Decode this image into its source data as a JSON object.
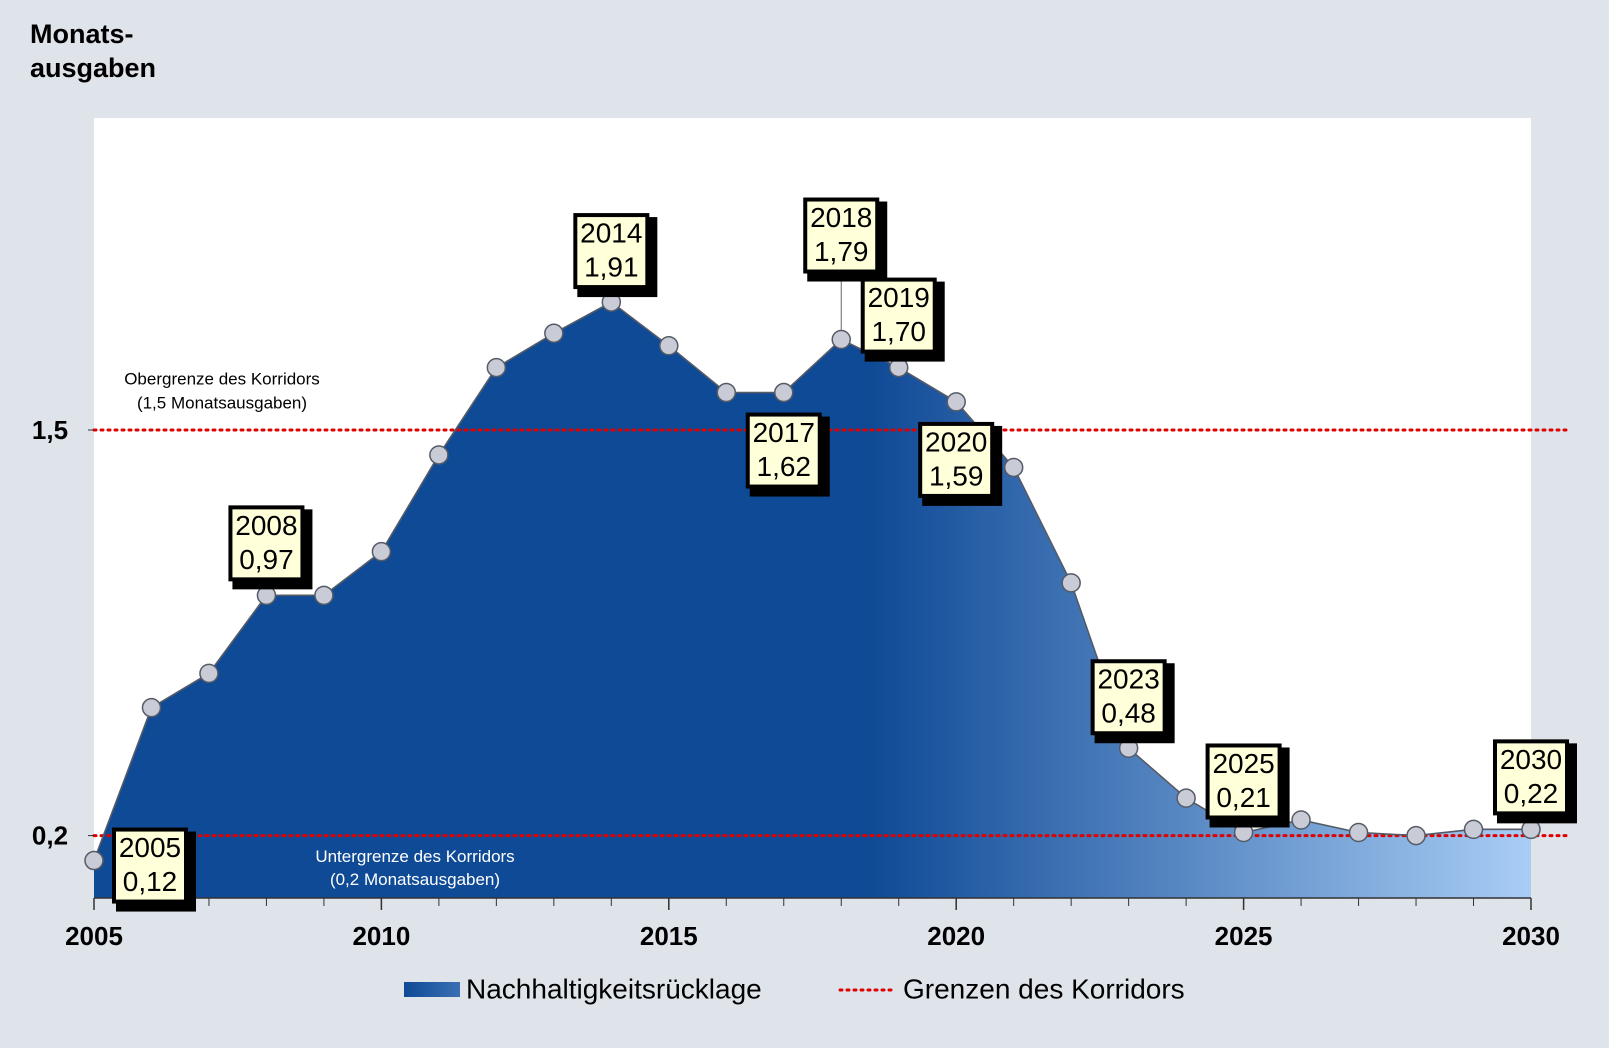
{
  "chart_data": {
    "type": "area",
    "y_label": [
      "Monats-",
      "ausgaben"
    ],
    "x": [
      2005,
      2006,
      2007,
      2008,
      2009,
      2010,
      2011,
      2012,
      2013,
      2014,
      2015,
      2016,
      2017,
      2018,
      2019,
      2020,
      2021,
      2022,
      2023,
      2024,
      2025,
      2026,
      2027,
      2028,
      2029,
      2030
    ],
    "series": [
      {
        "name": "Nachhaltigkeitsrücklage",
        "color": "#0f4a96",
        "color_end": "#a9cdf5",
        "values": [
          0.12,
          0.61,
          0.72,
          0.97,
          0.97,
          1.11,
          1.42,
          1.7,
          1.81,
          1.91,
          1.77,
          1.62,
          1.62,
          1.79,
          1.7,
          1.59,
          1.38,
          1.01,
          0.48,
          0.32,
          0.21,
          0.25,
          0.21,
          0.2,
          0.22,
          0.22
        ],
        "value_labels": [
          "0,12",
          null,
          null,
          "0,97",
          null,
          null,
          null,
          null,
          null,
          "1,91",
          null,
          null,
          "1,62",
          "1,79",
          "1,70",
          "1,59",
          null,
          null,
          "0,48",
          null,
          "0,21",
          null,
          null,
          null,
          null,
          "0,22"
        ]
      }
    ],
    "bounds": {
      "name": "Grenzen des Korridors",
      "color": "#e00000",
      "lines": [
        {
          "value": 1.5,
          "label": "Obergrenze des Korridors",
          "note": "(1,5 Monatsausgaben)"
        },
        {
          "value": 0.2,
          "label": "Untergrenze des Korridors",
          "note": "(0,2 Monatsausgaben)"
        }
      ]
    },
    "xlim": [
      2005,
      2030
    ],
    "xticks": [
      2005,
      2010,
      2015,
      2020,
      2025,
      2030
    ],
    "ylim": [
      0,
      2.5
    ],
    "yticks": [
      {
        "value": 0.2,
        "label": "0,2"
      },
      {
        "value": 1.5,
        "label": "1,5"
      }
    ]
  }
}
